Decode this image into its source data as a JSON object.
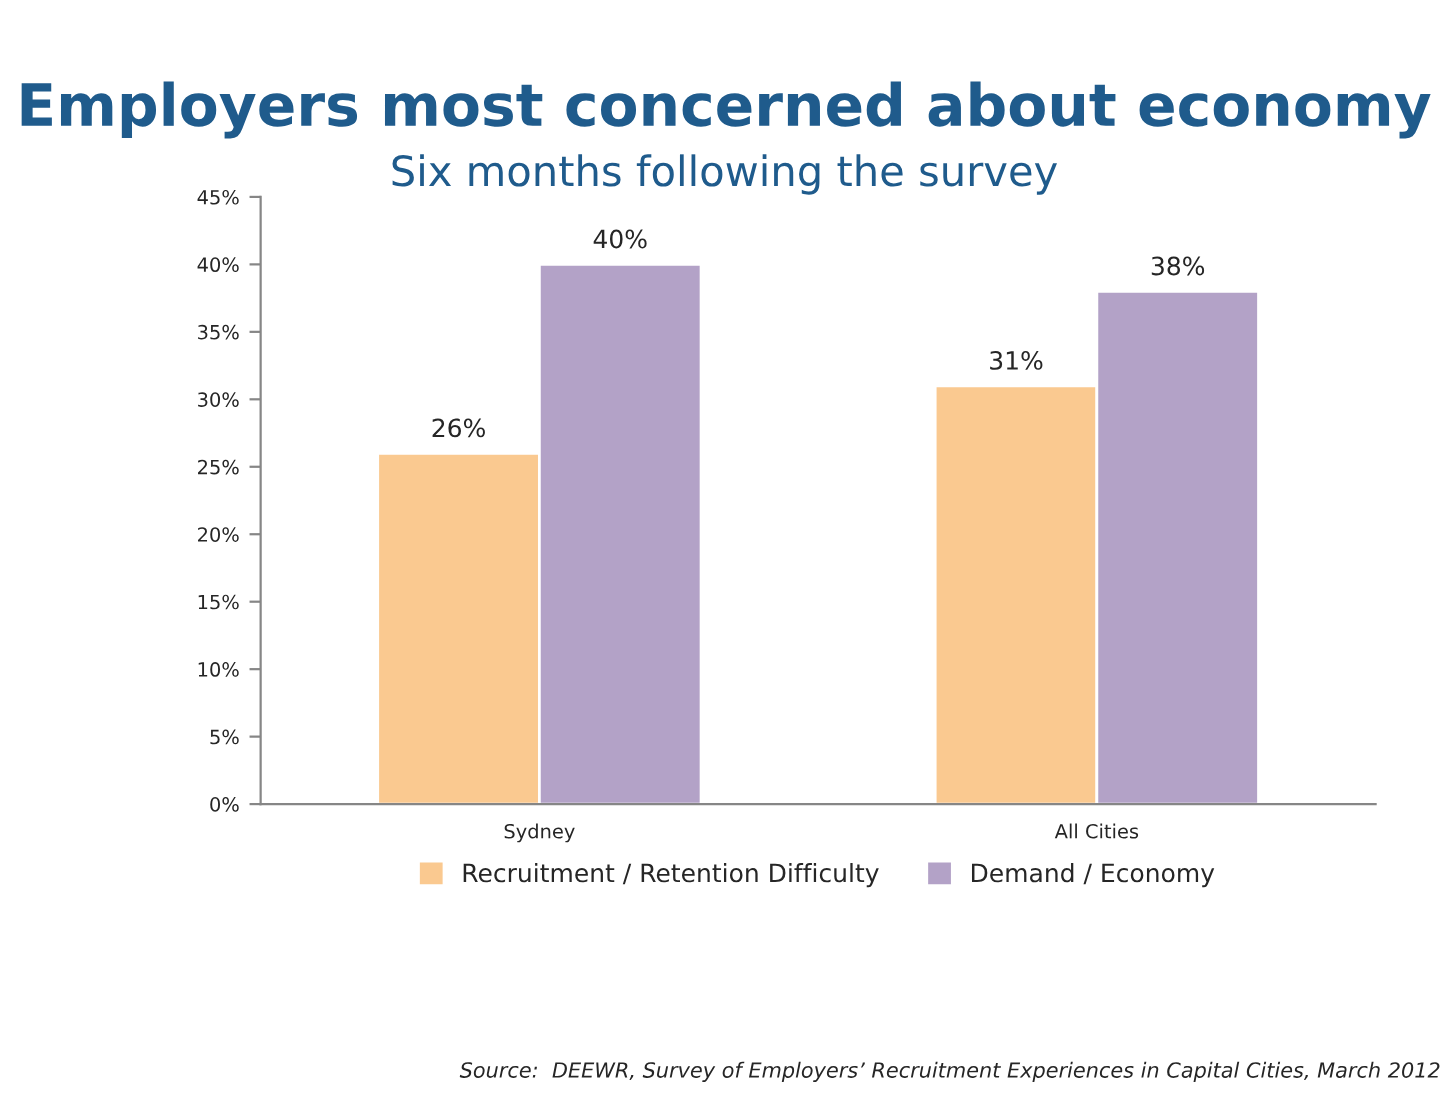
{
  "chart_data": {
    "type": "bar",
    "title": "Employers most concerned about economy",
    "subtitle": "Six months following the survey",
    "categories": [
      "Sydney",
      "All Cities"
    ],
    "series": [
      {
        "name": "Recruitment / Retention Difficulty",
        "color": "#fac990",
        "values": [
          26,
          31
        ],
        "value_labels": [
          "26%",
          "31%"
        ]
      },
      {
        "name": "Demand / Economy",
        "color": "#b3a2c7",
        "values": [
          40,
          38
        ],
        "value_labels": [
          "40%",
          "38%"
        ]
      }
    ],
    "ylim": [
      0,
      45
    ],
    "yticks": [
      {
        "value": 0,
        "label": "0%"
      },
      {
        "value": 5,
        "label": "5%"
      },
      {
        "value": 10,
        "label": "10%"
      },
      {
        "value": 15,
        "label": "15%"
      },
      {
        "value": 20,
        "label": "20%"
      },
      {
        "value": 25,
        "label": "25%"
      },
      {
        "value": 30,
        "label": "30%"
      },
      {
        "value": 35,
        "label": "35%"
      },
      {
        "value": 40,
        "label": "40%"
      },
      {
        "value": 45,
        "label": "45%"
      }
    ],
    "grid": false,
    "legend": "bottom",
    "annotations": [
      "Source:  DEEWR, Survey of Employers’ Recruitment Experiences in Capital Cities, March 2012"
    ]
  }
}
